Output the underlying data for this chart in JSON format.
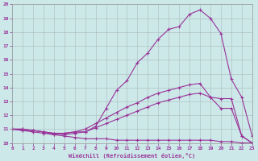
{
  "xlabel": "Windchill (Refroidissement éolien,°C)",
  "bg_color": "#cce8e8",
  "line_color": "#993399",
  "grid_color": "#aabbbb",
  "xlim": [
    0,
    23
  ],
  "ylim": [
    10,
    20
  ],
  "yticks": [
    10,
    11,
    12,
    13,
    14,
    15,
    16,
    17,
    18,
    19,
    20
  ],
  "xticks": [
    0,
    1,
    2,
    3,
    4,
    5,
    6,
    7,
    8,
    9,
    10,
    11,
    12,
    13,
    14,
    15,
    16,
    17,
    18,
    19,
    20,
    21,
    22,
    23
  ],
  "line1_x": [
    0,
    1,
    2,
    3,
    4,
    5,
    6,
    7,
    8,
    9,
    10,
    11,
    12,
    13,
    14,
    15,
    16,
    17,
    18,
    19,
    20,
    21,
    22,
    23
  ],
  "line1_y": [
    11.0,
    10.9,
    10.9,
    10.8,
    10.6,
    10.7,
    10.8,
    10.8,
    11.2,
    12.5,
    13.8,
    14.5,
    15.8,
    16.5,
    17.5,
    18.2,
    18.4,
    19.3,
    19.6,
    19.0,
    17.9,
    14.6,
    13.3,
    10.5
  ],
  "line2_x": [
    0,
    1,
    2,
    3,
    4,
    5,
    6,
    7,
    8,
    9,
    10,
    11,
    12,
    13,
    14,
    15,
    16,
    17,
    18,
    19,
    20,
    21,
    22,
    23
  ],
  "line2_y": [
    11.0,
    11.0,
    10.9,
    10.8,
    10.7,
    10.7,
    10.8,
    11.0,
    11.4,
    11.8,
    12.2,
    12.6,
    12.9,
    13.3,
    13.6,
    13.8,
    14.0,
    14.2,
    14.3,
    13.3,
    13.2,
    13.2,
    10.5,
    10.0
  ],
  "line3_x": [
    0,
    1,
    2,
    3,
    4,
    5,
    6,
    7,
    8,
    9,
    10,
    11,
    12,
    13,
    14,
    15,
    16,
    17,
    18,
    19,
    20,
    21,
    22,
    23
  ],
  "line3_y": [
    11.0,
    11.0,
    10.9,
    10.8,
    10.7,
    10.6,
    10.7,
    10.8,
    11.1,
    11.4,
    11.7,
    12.0,
    12.3,
    12.6,
    12.9,
    13.1,
    13.3,
    13.5,
    13.6,
    13.3,
    12.5,
    12.5,
    10.5,
    10.0
  ],
  "line4_x": [
    0,
    1,
    2,
    3,
    4,
    5,
    6,
    7,
    8,
    9,
    10,
    11,
    12,
    13,
    14,
    15,
    16,
    17,
    18,
    19,
    20,
    21,
    22,
    23
  ],
  "line4_y": [
    11.0,
    10.9,
    10.8,
    10.7,
    10.6,
    10.5,
    10.4,
    10.3,
    10.3,
    10.3,
    10.2,
    10.2,
    10.2,
    10.2,
    10.2,
    10.2,
    10.2,
    10.2,
    10.2,
    10.2,
    10.1,
    10.1,
    10.0,
    10.0
  ]
}
